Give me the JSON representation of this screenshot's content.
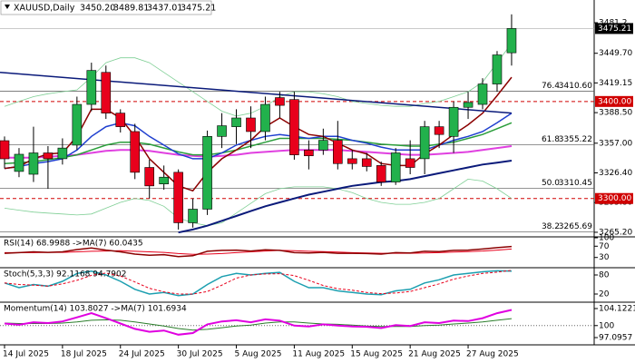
{
  "chart_data": [
    {
      "type": "candlestick",
      "header": {
        "symbol": "XAUUSD,Daily",
        "values": [
          3450.2,
          3489.81,
          3437.01,
          3475.21
        ],
        "value_labels": [
          "3450.20",
          "3489.81",
          "3437.01",
          "3475.21"
        ]
      },
      "categories": [
        "14 Jul 2025",
        null,
        null,
        null,
        "18 Jul 2025",
        null,
        null,
        null,
        "24 Jul 2025",
        null,
        null,
        null,
        "30 Jul 2025",
        null,
        null,
        null,
        "5 Aug 2025",
        null,
        null,
        null,
        "11 Aug 2025",
        null,
        null,
        null,
        "15 Aug 2025",
        null,
        null,
        null,
        "21 Aug 2025",
        null,
        null,
        null,
        "27 Aug 2025",
        null,
        null,
        null
      ],
      "ohlc": [
        [
          3359.6,
          3364,
          3331,
          3340.9
        ],
        [
          3327.9,
          3352,
          3322,
          3345.6
        ],
        [
          3325,
          3374,
          3317,
          3347
        ],
        [
          3347,
          3354,
          3310,
          3341
        ],
        [
          3341,
          3362,
          3335,
          3352
        ],
        [
          3355,
          3405,
          3350,
          3397
        ],
        [
          3397,
          3440,
          3390,
          3432
        ],
        [
          3430,
          3437,
          3382,
          3388
        ],
        [
          3388,
          3392,
          3368,
          3374
        ],
        [
          3369,
          3377,
          3320,
          3327
        ],
        [
          3332,
          3340,
          3300,
          3313
        ],
        [
          3315,
          3334,
          3309,
          3322
        ],
        [
          3327,
          3330,
          3268,
          3275
        ],
        [
          3275,
          3300,
          3270,
          3289
        ],
        [
          3289,
          3370,
          3283,
          3364
        ],
        [
          3364,
          3388,
          3352,
          3375
        ],
        [
          3374,
          3392,
          3356,
          3383
        ],
        [
          3383,
          3395,
          3352,
          3369
        ],
        [
          3369,
          3405,
          3360,
          3397
        ],
        [
          3404,
          3410,
          3383,
          3396
        ],
        [
          3402,
          3410,
          3340,
          3345
        ],
        [
          3350,
          3360,
          3330,
          3344
        ],
        [
          3350,
          3372,
          3345,
          3360
        ],
        [
          3360,
          3380,
          3330,
          3336
        ],
        [
          3341,
          3350,
          3330,
          3336
        ],
        [
          3341,
          3347,
          3328,
          3333
        ],
        [
          3334,
          3338,
          3313,
          3317
        ],
        [
          3317,
          3352,
          3314,
          3347
        ],
        [
          3341,
          3360,
          3325,
          3332
        ],
        [
          3341,
          3380,
          3325,
          3374
        ],
        [
          3374,
          3380,
          3352,
          3366
        ],
        [
          3364,
          3400,
          3347,
          3394
        ],
        [
          3394,
          3410,
          3382,
          3399
        ],
        [
          3397,
          3424,
          3392,
          3418
        ],
        [
          3418,
          3452,
          3410,
          3448
        ],
        [
          3450.2,
          3489.81,
          3437.01,
          3475.21
        ]
      ],
      "up_color": "#22b14c",
      "down_color": "#e8001c",
      "series": [
        {
          "color": "#7fcf95",
          "width": 0.8,
          "values": [
            3395,
            3400,
            3405,
            3408,
            3410,
            3412,
            3425,
            3440,
            3445,
            3445,
            3440,
            3430,
            3420,
            3410,
            3400,
            3390,
            3385,
            3388,
            3395,
            3405,
            3410,
            3410,
            3408,
            3405,
            3400,
            3398,
            3396,
            3395,
            3395,
            3398,
            3400,
            3405,
            3410,
            3420,
            3440,
            3460
          ]
        },
        {
          "color": "#7fcf95",
          "width": 0.8,
          "values": [
            3290,
            3288,
            3286,
            3285,
            3284,
            3283,
            3284,
            3290,
            3296,
            3300,
            3298,
            3292,
            3280,
            3275,
            3272,
            3275,
            3285,
            3295,
            3305,
            3310,
            3312,
            3312,
            3312,
            3310,
            3306,
            3300,
            3296,
            3294,
            3294,
            3296,
            3300,
            3310,
            3320,
            3318,
            3310,
            3300
          ]
        },
        {
          "color": "#e040e0",
          "width": 2,
          "values": [
            3342,
            3342,
            3342,
            3343,
            3344,
            3345,
            3347,
            3349,
            3350,
            3350,
            3349,
            3347,
            3345,
            3344,
            3343,
            3344,
            3345,
            3347,
            3348,
            3349,
            3350,
            3350,
            3350,
            3350,
            3349,
            3348,
            3347,
            3346,
            3345,
            3345,
            3346,
            3347,
            3348,
            3350,
            3352,
            3354
          ]
        },
        {
          "color": "#2a9d3a",
          "width": 1.5,
          "values": [
            3336,
            3337,
            3338,
            3340,
            3342,
            3345,
            3350,
            3355,
            3358,
            3358,
            3356,
            3352,
            3348,
            3345,
            3345,
            3347,
            3350,
            3354,
            3358,
            3362,
            3362,
            3362,
            3362,
            3361,
            3360,
            3358,
            3356,
            3355,
            3354,
            3354,
            3356,
            3358,
            3362,
            3366,
            3372,
            3378
          ]
        },
        {
          "color": "#1f3fcf",
          "width": 1.5,
          "values": [
            3331,
            3333,
            3336,
            3338,
            3341,
            3350,
            3364,
            3374,
            3378,
            3375,
            3364,
            3355,
            3346,
            3341,
            3341,
            3347,
            3355,
            3360,
            3364,
            3366,
            3364,
            3362,
            3364,
            3364,
            3360,
            3357,
            3353,
            3350,
            3350,
            3350,
            3355,
            3360,
            3364,
            3369,
            3378,
            3388
          ]
        },
        {
          "color": "#8b0000",
          "width": 1.5,
          "values": [
            3331,
            3333,
            3341,
            3346,
            3347,
            3364,
            3392,
            3392,
            3383,
            3364,
            3341,
            3327,
            3313,
            3308,
            3327,
            3341,
            3350,
            3360,
            3374,
            3383,
            3374,
            3366,
            3364,
            3357,
            3350,
            3346,
            3336,
            3334,
            3334,
            3346,
            3355,
            3366,
            3376,
            3388,
            3406,
            3425
          ]
        },
        {
          "color": "#0a1a7a",
          "width": 2,
          "values": [
            null,
            null,
            null,
            null,
            null,
            null,
            null,
            null,
            null,
            null,
            null,
            null,
            3265,
            3268,
            3272,
            3277,
            3282,
            3287,
            3292,
            3296,
            3300,
            3304,
            3307,
            3310,
            3313,
            3315,
            3317,
            3318,
            3320,
            3323,
            3326,
            3329,
            3332,
            3335,
            3337,
            3339
          ]
        }
      ],
      "trendline": {
        "color": "#0a1a7a",
        "values": [
          3430,
          3388
        ]
      },
      "ylim": [
        3261.4,
        3504.6
      ],
      "yticks": [
        {
          "value": 3265.2,
          "label": "3265.20"
        },
        {
          "value": 3295.8,
          "label": "3295.80"
        },
        {
          "value": 3326.4,
          "label": "3326.40"
        },
        {
          "value": 3357.0,
          "label": "3357.00"
        },
        {
          "value": 3388.5,
          "label": "3388.50"
        },
        {
          "value": 3419.15,
          "label": "3419.15"
        },
        {
          "value": 3449.7,
          "label": "3449.70"
        },
        3481.2
      ],
      "fib_levels": {
        "ratios": [
          "76.4",
          "61.8",
          "50.0",
          "38.2"
        ],
        "values": [
          3410.6,
          3355.22,
          3310.45,
          3265.69
        ],
        "value_labels": [
          "3410.60",
          "3355.22",
          "3310.45",
          "3265.69"
        ]
      },
      "price_levels": {
        "color": "#d00000",
        "values": [
          3400,
          3300
        ],
        "value_labels": [
          "3400.00",
          "3300.00"
        ]
      },
      "last_price": {
        "value": 3475.21,
        "label": "3475.21"
      }
    },
    {
      "type": "line",
      "title": "RSI(14) 68.9988 ->MA(7) 60.0435",
      "ylim": [
        0,
        100
      ],
      "yticks": [
        30,
        70,
        100
      ],
      "series": [
        {
          "color": "#e8001c",
          "width": 1,
          "values": [
            47,
            47,
            47,
            48,
            48,
            50,
            52,
            53,
            54,
            52,
            50,
            48,
            44,
            41,
            42,
            44,
            47,
            50,
            53,
            55,
            54,
            52,
            51,
            49,
            47,
            46,
            45,
            45,
            45,
            46,
            47,
            49,
            51,
            53,
            56,
            60.0435
          ]
        },
        {
          "color": "#8b0000",
          "width": 1.5,
          "values": [
            45,
            47,
            50,
            48,
            50,
            58,
            64,
            56,
            50,
            42,
            38,
            40,
            33,
            36,
            52,
            55,
            56,
            53,
            57,
            55,
            47,
            46,
            48,
            45,
            45,
            44,
            42,
            47,
            46,
            52,
            51,
            55,
            56,
            60,
            65,
            68.9988
          ]
        }
      ]
    },
    {
      "type": "line",
      "title": "Stoch(5,3,3) 92.1168 94.7902",
      "ylim": [
        0,
        100
      ],
      "yticks": [
        20,
        80
      ],
      "series": [
        {
          "color": "#1c9fb0",
          "width": 1.5,
          "values": [
            55,
            40,
            50,
            45,
            60,
            85,
            92,
            80,
            60,
            35,
            20,
            25,
            15,
            20,
            50,
            75,
            85,
            80,
            85,
            88,
            60,
            40,
            40,
            30,
            25,
            20,
            18,
            30,
            35,
            55,
            65,
            80,
            85,
            90,
            93,
            92.1168
          ]
        },
        {
          "color": "#e8001c",
          "width": 1,
          "dash": true,
          "values": [
            55,
            50,
            48,
            45,
            52,
            63,
            79,
            86,
            77,
            58,
            38,
            27,
            20,
            20,
            28,
            48,
            70,
            80,
            83,
            84,
            78,
            63,
            47,
            37,
            32,
            25,
            21,
            23,
            28,
            40,
            52,
            67,
            77,
            85,
            89,
            94.7902
          ]
        }
      ]
    },
    {
      "type": "line",
      "title": "Momentum(14) 103.8027 ->MA(7) 101.6934",
      "ylim": [
        95.34,
        105.44
      ],
      "yticks": [
        97.0957,
        100,
        104.1221
      ],
      "hline": 100,
      "series": [
        {
          "color": "#2a7d2a",
          "width": 1,
          "values": [
            100.6,
            100.5,
            100.5,
            100.5,
            100.6,
            100.9,
            101.3,
            101.4,
            101.3,
            100.9,
            100.4,
            99.9,
            99.3,
            98.9,
            99.1,
            99.5,
            99.9,
            100.1,
            100.6,
            100.9,
            100.9,
            100.6,
            100.4,
            100.3,
            100.1,
            99.9,
            99.8,
            99.8,
            99.8,
            100,
            100.1,
            100.4,
            100.6,
            100.9,
            101.3,
            101.6934
          ]
        },
        {
          "color": "#e000e0",
          "width": 2,
          "values": [
            100.5,
            100.2,
            100.8,
            100.6,
            101,
            102,
            103,
            101.8,
            100.5,
            99.2,
            98.5,
            98.8,
            97.8,
            98.2,
            100.3,
            101,
            101.3,
            100.8,
            101.5,
            101.2,
            100,
            99.8,
            100.3,
            100,
            99.8,
            99.7,
            99.4,
            100.1,
            99.9,
            100.8,
            100.6,
            101.2,
            101.1,
            101.8,
            103,
            103.8027
          ]
        }
      ]
    }
  ]
}
